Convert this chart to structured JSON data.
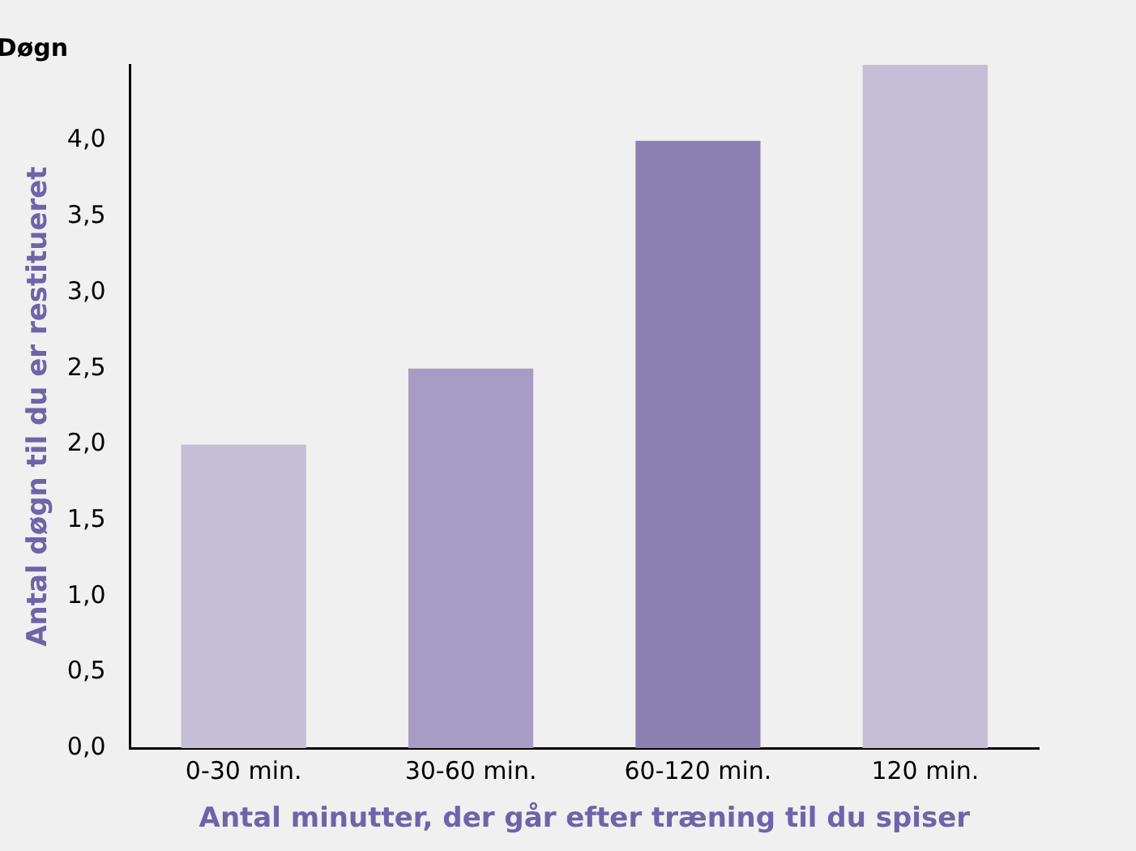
{
  "chart_data": {
    "type": "bar",
    "ylabel": "Antal døgn til du er restitueret",
    "xlabel": "Antal minutter, der går efter træning til du spiser",
    "annotations": [
      "Døgn"
    ],
    "categories": [
      "0-30 min.",
      "30-60 min.",
      "60-120 min.",
      "120 min."
    ],
    "values": [
      2.0,
      2.5,
      4.0,
      4.5
    ],
    "colors": [
      "#c4bfd6",
      "#a79dc4",
      "#8c80b0",
      "#c3bdd6"
    ],
    "ylim": [
      0,
      4.5
    ],
    "yticks": [
      {
        "value": 0,
        "label": "0,0"
      },
      {
        "value": 0.5,
        "label": "0,5"
      },
      {
        "value": 1,
        "label": "1,0"
      },
      {
        "value": 1.5,
        "label": "1,5"
      },
      {
        "value": 2,
        "label": "2,0"
      },
      {
        "value": 2.5,
        "label": "2,5"
      },
      {
        "value": 3,
        "label": "3,0"
      },
      {
        "value": 3.5,
        "label": "3,5"
      },
      {
        "value": 4,
        "label": "4,0"
      }
    ],
    "grid": false,
    "legend": false
  }
}
